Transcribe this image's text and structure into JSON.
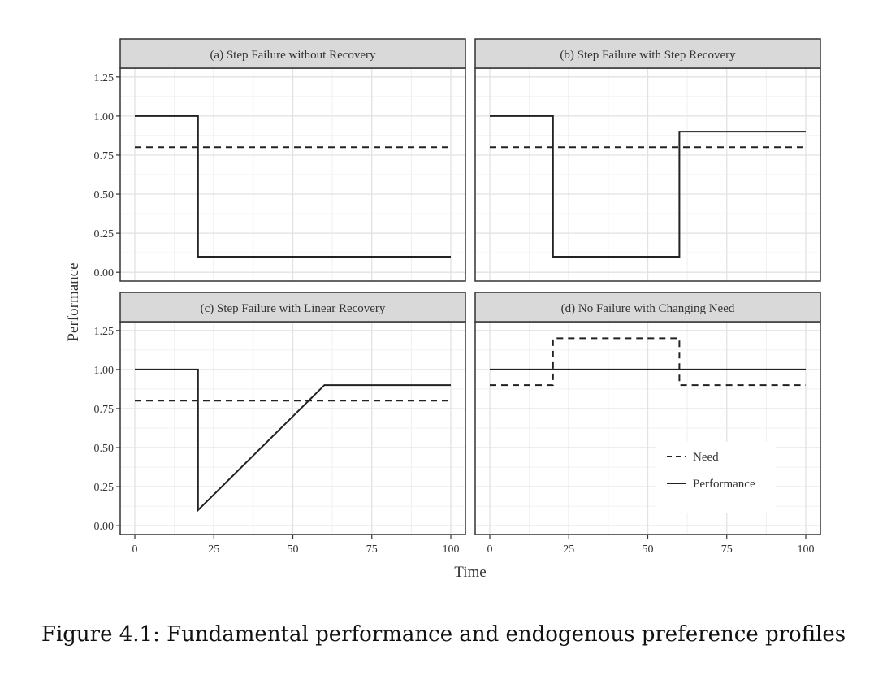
{
  "figure": {
    "caption": "Figure 4.1: Fundamental performance and endogenous preference profiles"
  },
  "chart_data": {
    "type": "line",
    "facet_layout": "2x2",
    "xlabel": "Time",
    "ylabel": "Performance",
    "xlim": [
      0,
      100
    ],
    "ylim": [
      0,
      1.25
    ],
    "x_ticks": [
      0,
      25,
      50,
      75,
      100
    ],
    "x_tick_labels": [
      "0",
      "25",
      "50",
      "75",
      "100"
    ],
    "y_ticks": [
      0,
      0.25,
      0.5,
      0.75,
      1.0,
      1.25
    ],
    "y_tick_labels": [
      "0.00",
      "0.25",
      "0.50",
      "0.75",
      "1.00",
      "1.25"
    ],
    "grid": true,
    "legend": {
      "placement": "inside-bottom-right of panel (d)",
      "entries": [
        {
          "label": "Need",
          "linetype": "dashed"
        },
        {
          "label": "Performance",
          "linetype": "solid"
        }
      ]
    },
    "colors": {
      "line": "#222222",
      "strip_fill": "#d9d9d9",
      "panel_border": "#333333",
      "grid_major": "#e2e2e2",
      "grid_minor": "#f0f0f0"
    },
    "panels": [
      {
        "title": "(a) Step Failure without Recovery",
        "series": [
          {
            "name": "Need",
            "linetype": "dashed",
            "x": [
              0,
              100
            ],
            "y": [
              0.8,
              0.8
            ]
          },
          {
            "name": "Performance",
            "linetype": "solid",
            "x": [
              0,
              20,
              20,
              100
            ],
            "y": [
              1.0,
              1.0,
              0.1,
              0.1
            ]
          }
        ]
      },
      {
        "title": "(b) Step Failure with Step Recovery",
        "series": [
          {
            "name": "Need",
            "linetype": "dashed",
            "x": [
              0,
              100
            ],
            "y": [
              0.8,
              0.8
            ]
          },
          {
            "name": "Performance",
            "linetype": "solid",
            "x": [
              0,
              20,
              20,
              60,
              60,
              100
            ],
            "y": [
              1.0,
              1.0,
              0.1,
              0.1,
              0.9,
              0.9
            ]
          }
        ]
      },
      {
        "title": "(c) Step Failure with Linear Recovery",
        "series": [
          {
            "name": "Need",
            "linetype": "dashed",
            "x": [
              0,
              100
            ],
            "y": [
              0.8,
              0.8
            ]
          },
          {
            "name": "Performance",
            "linetype": "solid",
            "x": [
              0,
              20,
              20,
              60,
              100
            ],
            "y": [
              1.0,
              1.0,
              0.1,
              0.9,
              0.9
            ]
          }
        ]
      },
      {
        "title": "(d) No Failure with Changing Need",
        "series": [
          {
            "name": "Need",
            "linetype": "dashed",
            "x": [
              0,
              20,
              20,
              60,
              60,
              100
            ],
            "y": [
              0.9,
              0.9,
              1.2,
              1.2,
              0.9,
              0.9
            ]
          },
          {
            "name": "Performance",
            "linetype": "solid",
            "x": [
              0,
              100
            ],
            "y": [
              1.0,
              1.0
            ]
          }
        ]
      }
    ]
  }
}
